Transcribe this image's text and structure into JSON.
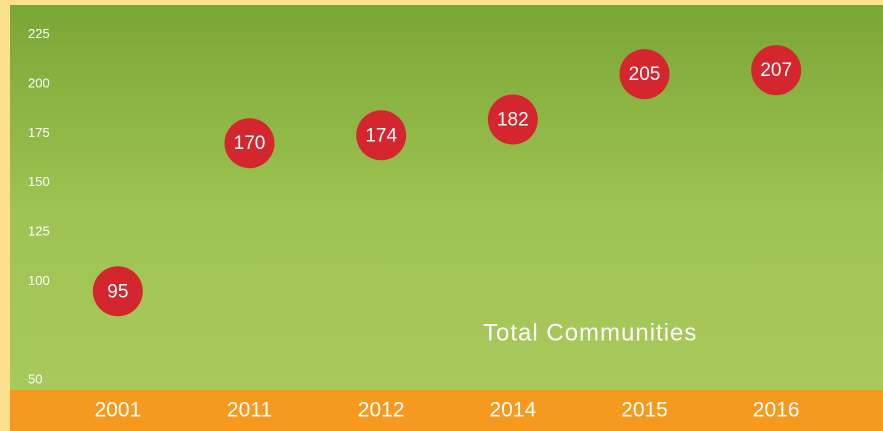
{
  "chart_data": {
    "type": "scatter",
    "annotation": "Total Communities",
    "categories": [
      "2001",
      "2011",
      "2012",
      "2014",
      "2015",
      "2016"
    ],
    "values": [
      95,
      170,
      174,
      182,
      205,
      207
    ],
    "color": "#d4262e",
    "ylim": [
      45,
      240
    ],
    "yticks": [
      225,
      200,
      175,
      150,
      125,
      100,
      50
    ]
  }
}
